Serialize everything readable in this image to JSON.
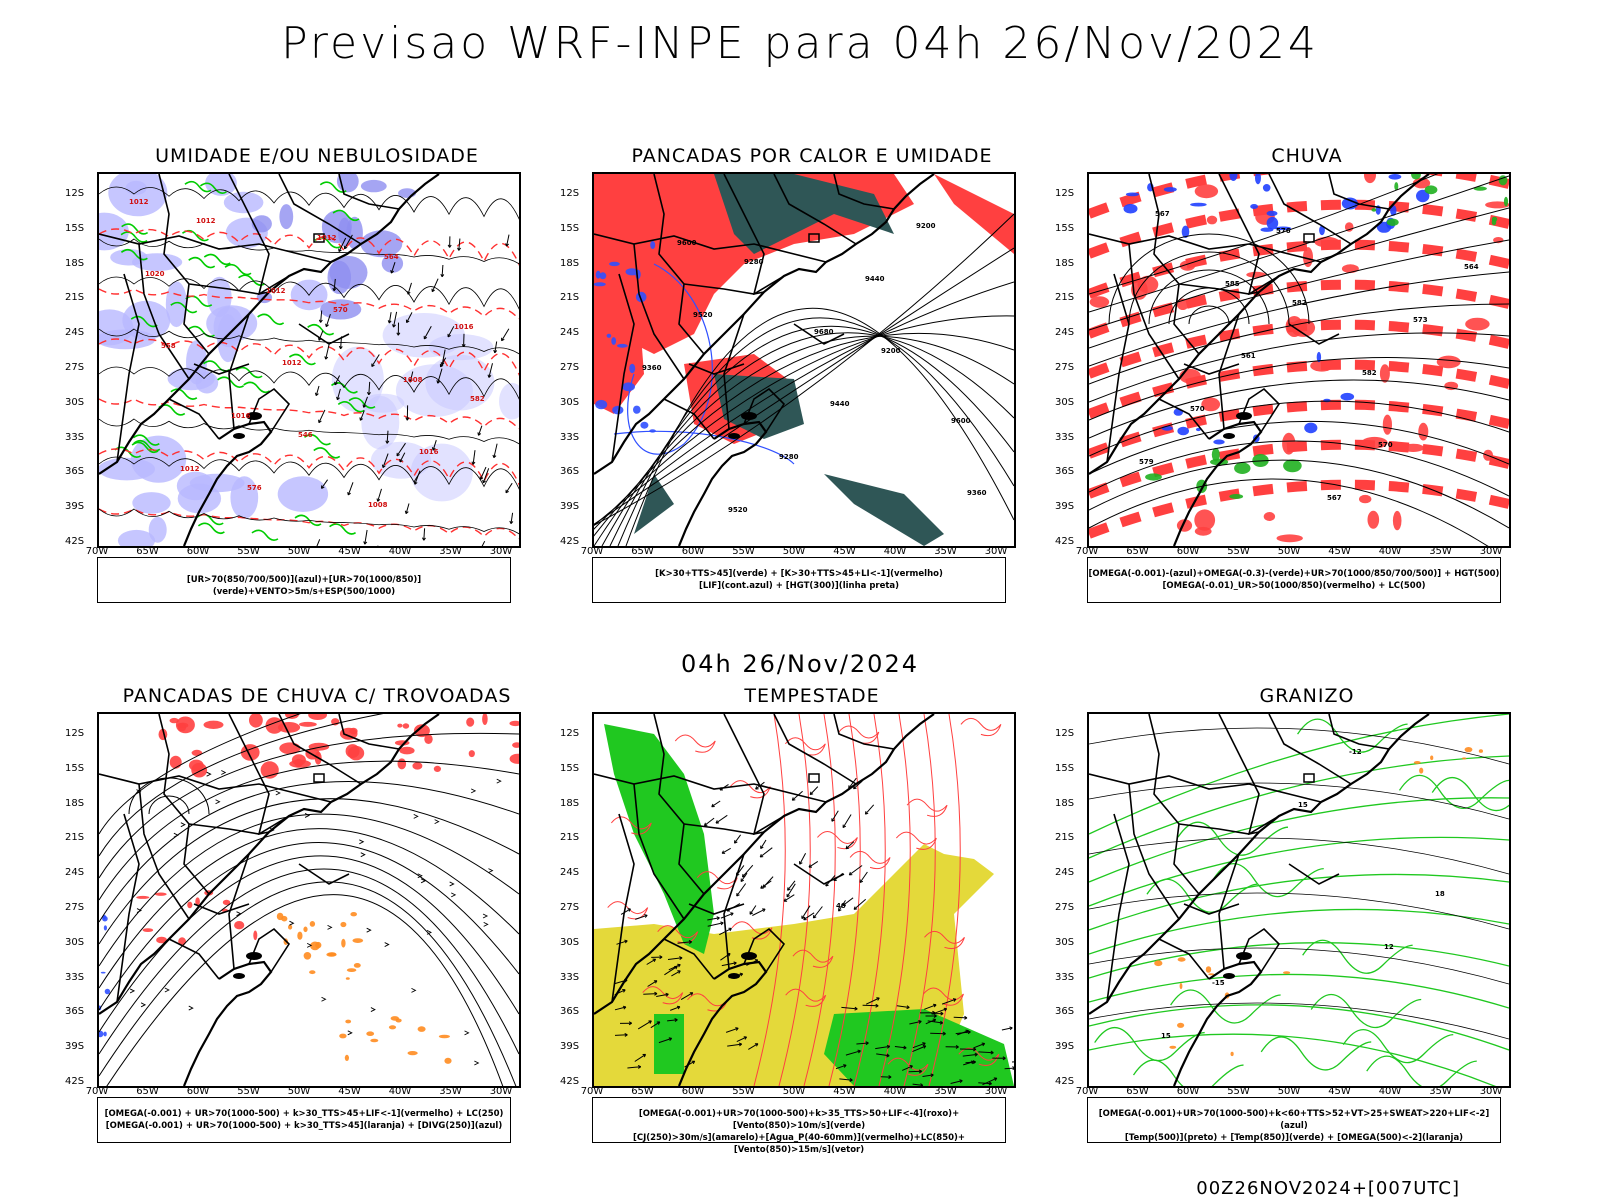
{
  "title": "Previsao WRF-INPE  para 04h 26/Nov/2024",
  "mid_title": "04h 26/Nov/2024",
  "footer": "00Z26NOV2024+[007UTC]",
  "lat_labels": [
    "12S",
    "15S",
    "18S",
    "21S",
    "24S",
    "27S",
    "30S",
    "33S",
    "36S",
    "39S",
    "42S"
  ],
  "lon_labels": [
    "70W",
    "65W",
    "60W",
    "55W",
    "50W",
    "45W",
    "40W",
    "35W",
    "30W"
  ],
  "panels": [
    {
      "title": "UMIDADE E/OU NEBULOSIDADE",
      "legend1": "[UR>70(850/700/500)](azul)+[UR>70(1000/850)](verde)+VENTO>5m/s+ESP(500/1000)",
      "legend2": "",
      "theme": "umidade",
      "contour_labels": [
        "1012",
        "1012",
        "1008",
        "1012",
        "1012",
        "1016",
        "1016",
        "1008",
        "1020",
        "1012",
        "1016",
        "1012",
        "570",
        "582",
        "576",
        "564",
        "558",
        "546"
      ]
    },
    {
      "title": "PANCADAS POR CALOR E UMIDADE",
      "legend1": "[K>30+TTS>45](verde) + [K>30+TTS>45+LI<-1](vermelho)",
      "legend2": "[LIF](cont.azul) + [HGT(300)](linha preta)",
      "theme": "pancadas",
      "contour_labels": [
        "9600",
        "9680",
        "9600",
        "9520",
        "9440",
        "9360",
        "9280",
        "9200",
        "9520",
        "9440",
        "9360",
        "9280",
        "9200"
      ]
    },
    {
      "title": "CHUVA",
      "legend1": "[OMEGA(-0.001)-(azul)+OMEGA(-0.3)-(verde)+UR>70(1000/850/700/500)] + HGT(500)",
      "legend2": "[OMEGA(-0.01)_UR>50(1000/850)(vermelho) + LC(500)",
      "theme": "chuva",
      "contour_labels": [
        "585",
        "582",
        "579",
        "576",
        "573",
        "570",
        "567",
        "564",
        "561",
        "570",
        "567",
        "582"
      ]
    },
    {
      "title": "PANCADAS DE CHUVA C/ TROVOADAS",
      "legend1": "[OMEGA(-0.001) + UR>70(1000-500) + k>30_TTS>45+LIF<-1](vermelho) + LC(250)",
      "legend2": "[OMEGA(-0.001) + UR>70(1000-500) + k>30_TTS>45](laranja) + [DIVG(250)](azul)",
      "theme": "trovoadas",
      "contour_labels": []
    },
    {
      "title": "TEMPESTADE",
      "legend1": "[OMEGA(-0.001)+UR>70(1000-500)+k>35_TTS>50+LIF<-4](roxo)+[Vento(850)>10m/s](verde)",
      "legend2": "[CJ(250)>30m/s](amarelo)+[Agua_P(40-60mm)](vermelho)+LC(850)+[Vento(850)>15m/s](vetor)",
      "theme": "tempestade",
      "contour_labels": [
        "40"
      ]
    },
    {
      "title": "GRANIZO",
      "legend1": "[OMEGA(-0.001)+UR>70(1000-500)+k<60+TTS>52+VT>25+SWEAT>220+LIF<-2](azul)",
      "legend2": "[Temp(500)](preto) + [Temp(850)](verde) + [OMEGA(500)<-2](laranja)",
      "theme": "granizo",
      "contour_labels": [
        "12",
        "15",
        "15",
        "18",
        "-15",
        "-12"
      ]
    }
  ]
}
